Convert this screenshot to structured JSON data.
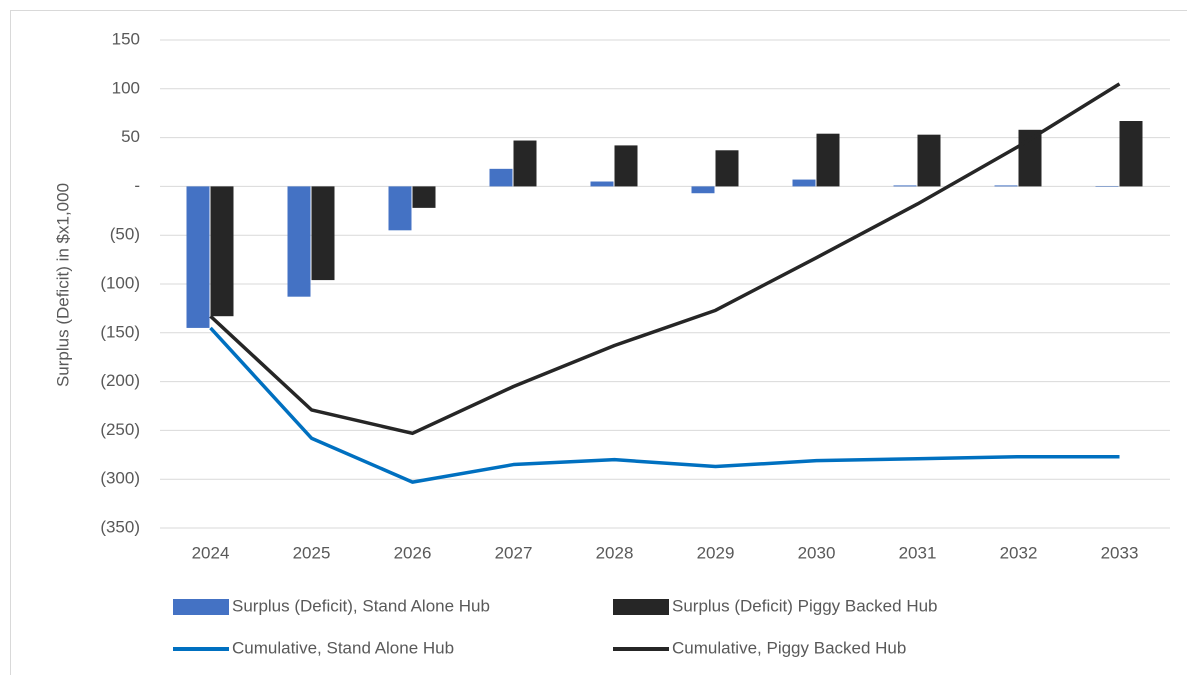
{
  "chart_data": {
    "type": "combo",
    "y_label": "Surplus (Deficit) in $x1,000",
    "categories": [
      "2024",
      "2025",
      "2026",
      "2027",
      "2028",
      "2029",
      "2030",
      "2031",
      "2032",
      "2033"
    ],
    "series": [
      {
        "name": "Surplus (Deficit), Stand Alone Hub",
        "type": "bar",
        "color": "#4472c4",
        "values": [
          -145,
          -113,
          -45,
          18,
          5,
          -7,
          7,
          1,
          1,
          0
        ]
      },
      {
        "name": "Surplus (Deficit) Piggy Backed Hub",
        "type": "bar",
        "color": "#262626",
        "values": [
          -133,
          -96,
          -22,
          47,
          42,
          37,
          54,
          53,
          58,
          67
        ]
      },
      {
        "name": "Cumulative, Stand Alone Hub",
        "type": "line",
        "color": "#0070c0",
        "values": [
          -145,
          -258,
          -303,
          -285,
          -280,
          -287,
          -281,
          -279,
          -277,
          -277
        ]
      },
      {
        "name": "Cumulative, Piggy Backed Hub",
        "type": "line",
        "color": "#262626",
        "values": [
          -133,
          -229,
          -253,
          -205,
          -163,
          -127,
          -73,
          -18,
          41,
          105
        ]
      }
    ],
    "ylim": [
      -350,
      150
    ],
    "yticks": [
      150,
      100,
      50,
      {
        "value": 0,
        "label": "-"
      },
      {
        "value": -50,
        "label": "(50)"
      },
      {
        "value": -100,
        "label": "(100)"
      },
      {
        "value": -150,
        "label": "(150)"
      },
      {
        "value": -200,
        "label": "(200)"
      },
      {
        "value": -250,
        "label": "(250)"
      },
      {
        "value": -300,
        "label": "(300)"
      },
      {
        "value": -350,
        "label": "(350)"
      }
    ],
    "grid": true
  }
}
